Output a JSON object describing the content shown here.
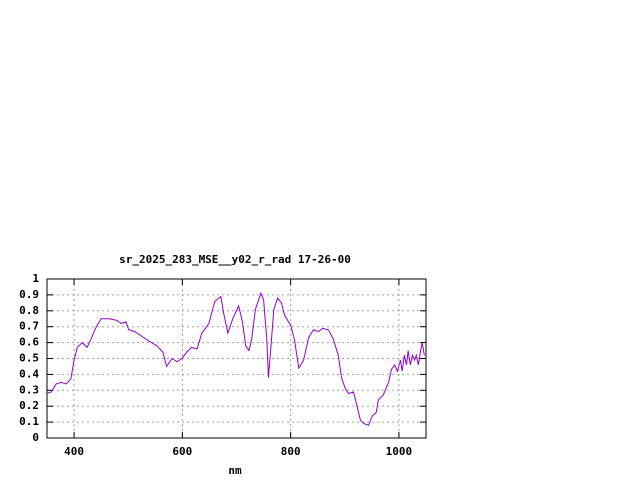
{
  "chart_data": {
    "type": "line",
    "title": "sr_2025_283_MSE__y02_r_rad 17-26-00",
    "x_label": "nm",
    "color": "#9400d3",
    "grid": true,
    "xlim": [
      350,
      1050
    ],
    "xticks": [
      400,
      600,
      800,
      1000
    ],
    "ylim": [
      0,
      1
    ],
    "yticks": [
      0,
      0.1,
      0.2,
      0.3,
      0.4,
      0.5,
      0.6,
      0.7,
      0.8,
      0.9,
      1
    ],
    "x": [
      350,
      358,
      367,
      376,
      385,
      394,
      400,
      406,
      415,
      424,
      431,
      441,
      450,
      465,
      479,
      487,
      496,
      501,
      512,
      525,
      538,
      553,
      564,
      571,
      581,
      590,
      599,
      608,
      617,
      627,
      636,
      649,
      660,
      671,
      676,
      684,
      693,
      704,
      711,
      717,
      723,
      728,
      735,
      745,
      750,
      756,
      759,
      763,
      769,
      776,
      783,
      789,
      800,
      807,
      815,
      824,
      833,
      842,
      852,
      859,
      870,
      879,
      888,
      894,
      901,
      907,
      916,
      922,
      929,
      936,
      944,
      951,
      958,
      962,
      971,
      981,
      986,
      992,
      997,
      1003,
      1006,
      1010,
      1014,
      1017,
      1021,
      1025,
      1029,
      1032,
      1036,
      1040,
      1043,
      1047
    ],
    "values": [
      0.28,
      0.29,
      0.34,
      0.35,
      0.34,
      0.37,
      0.49,
      0.57,
      0.6,
      0.57,
      0.62,
      0.7,
      0.75,
      0.75,
      0.74,
      0.72,
      0.73,
      0.68,
      0.67,
      0.64,
      0.61,
      0.58,
      0.54,
      0.45,
      0.5,
      0.48,
      0.5,
      0.54,
      0.57,
      0.56,
      0.66,
      0.72,
      0.86,
      0.89,
      0.79,
      0.66,
      0.75,
      0.83,
      0.73,
      0.58,
      0.55,
      0.62,
      0.81,
      0.91,
      0.87,
      0.62,
      0.38,
      0.55,
      0.81,
      0.88,
      0.85,
      0.77,
      0.71,
      0.62,
      0.44,
      0.49,
      0.63,
      0.68,
      0.67,
      0.69,
      0.68,
      0.62,
      0.52,
      0.38,
      0.31,
      0.28,
      0.29,
      0.21,
      0.11,
      0.09,
      0.08,
      0.14,
      0.16,
      0.24,
      0.27,
      0.35,
      0.43,
      0.46,
      0.42,
      0.49,
      0.42,
      0.52,
      0.46,
      0.55,
      0.46,
      0.52,
      0.49,
      0.52,
      0.46,
      0.55,
      0.6,
      0.52
    ]
  }
}
